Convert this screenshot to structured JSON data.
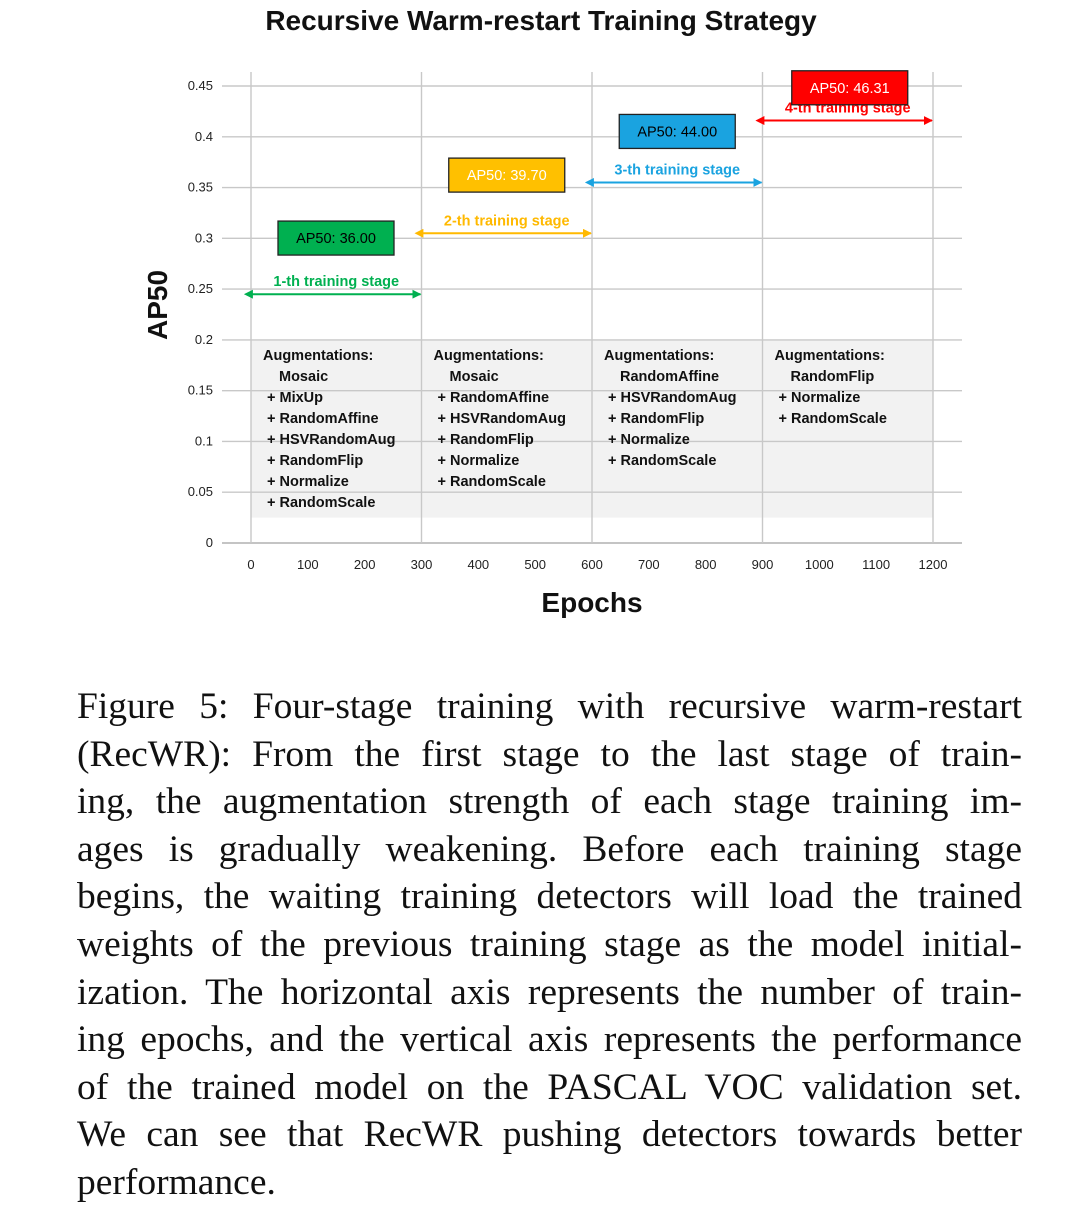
{
  "chart_data": {
    "type": "line",
    "title": "Recursive Warm-restart Training Strategy",
    "xlabel": "Epochs",
    "ylabel": "AP50",
    "xlim": [
      0,
      1200
    ],
    "ylim": [
      0,
      0.45
    ],
    "xticks": [
      "0",
      "100",
      "200",
      "300",
      "400",
      "500",
      "600",
      "700",
      "800",
      "900",
      "1000",
      "1100",
      "1200"
    ],
    "yticks": [
      "0",
      "0.05",
      "0.1",
      "0.15",
      "0.2",
      "0.25",
      "0.3",
      "0.35",
      "0.4",
      "0.45"
    ],
    "grid": true,
    "stages": [
      {
        "label": "1-th training stage",
        "start": 0,
        "end": 300,
        "arrow_y": 0.245,
        "ap_label": "AP50: 36.00",
        "ap_value": 36.0,
        "ap_box_y": 0.317,
        "color": "#00b050",
        "fill": "#00b050",
        "ap_text_color": "#000000",
        "augmentations": [
          "Mosaic",
          "+ MixUp",
          "+ RandomAffine",
          "+ HSVRandomAug",
          "+ RandomFlip",
          "+ Normalize",
          "+ RandomScale"
        ]
      },
      {
        "label": "2-th training stage",
        "start": 300,
        "end": 600,
        "arrow_y": 0.305,
        "ap_label": "AP50: 39.70",
        "ap_value": 39.7,
        "ap_box_y": 0.379,
        "color": "#ffb900",
        "fill": "#ffc000",
        "ap_text_color": "#ffffff",
        "augmentations": [
          "Mosaic",
          "+ RandomAffine",
          "+ HSVRandomAug",
          "+ RandomFlip",
          "+ Normalize",
          "+ RandomScale"
        ]
      },
      {
        "label": "3-th training stage",
        "start": 600,
        "end": 900,
        "arrow_y": 0.355,
        "ap_label": "AP50: 44.00",
        "ap_value": 44.0,
        "ap_box_y": 0.422,
        "color": "#1aa3e0",
        "fill": "#1aa3e0",
        "ap_text_color": "#000000",
        "augmentations": [
          "RandomAffine",
          "+ HSVRandomAug",
          "+ RandomFlip",
          "+ Normalize",
          "+ RandomScale"
        ]
      },
      {
        "label": "4-th training stage",
        "start": 900,
        "end": 1200,
        "arrow_y": 0.416,
        "ap_label": "AP50: 46.31",
        "ap_value": 46.31,
        "ap_box_y": 0.465,
        "color": "#ff0000",
        "fill": "#ff0000",
        "ap_text_color": "#ffffff",
        "augmentations": [
          "RandomFlip",
          "+ Normalize",
          "+ RandomScale"
        ]
      }
    ],
    "augmentation_heading": "Augmentations:",
    "augmentation_panel_range": [
      0.025,
      0.2
    ]
  },
  "caption": {
    "lines": [
      "Figure 5: Four-stage training with recursive warm-restart",
      "(RecWR): From the first stage to the last stage of train-",
      "ing, the augmentation strength of each stage training im-",
      "ages is gradually weakening.  Before each training stage",
      "begins, the waiting training detectors will load the trained",
      "weights of the previous training stage as the model initial-",
      "ization. The horizontal axis represents the number of train-",
      "ing epochs, and the vertical axis represents the performance",
      "of the trained model on the PASCAL VOC validation set.",
      "We can see that RecWR pushing detectors towards better",
      "performance."
    ]
  }
}
